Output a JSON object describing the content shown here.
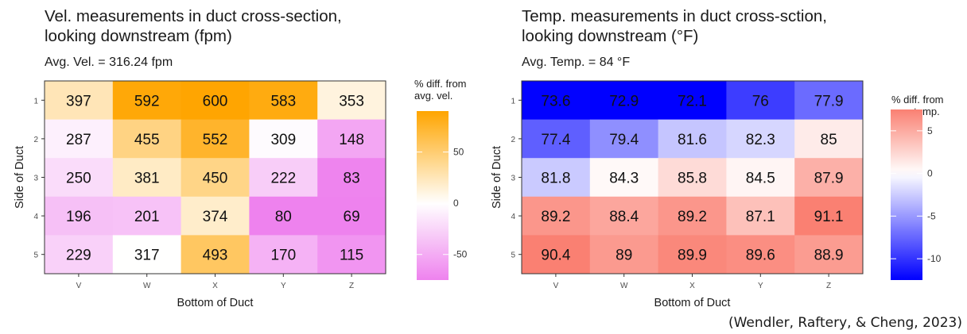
{
  "citation": "(Wendler, Raftery, & Cheng, 2023)",
  "chart_data": [
    {
      "type": "heatmap",
      "title": "Vel. measurements in duct cross-section,",
      "title_line2": "looking downstream (fpm)",
      "subtitle": "Avg. Vel. = 316.24 fpm",
      "xlabel": "Bottom of Duct",
      "ylabel": "Side of Duct",
      "x_categories": [
        "V",
        "W",
        "X",
        "Y",
        "Z"
      ],
      "y_categories": [
        "1",
        "2",
        "3",
        "4",
        "5"
      ],
      "values": [
        [
          397,
          592,
          600,
          583,
          353
        ],
        [
          287,
          455,
          552,
          309,
          148
        ],
        [
          250,
          381,
          450,
          222,
          83
        ],
        [
          196,
          201,
          374,
          80,
          69
        ],
        [
          229,
          317,
          493,
          170,
          115
        ]
      ],
      "average": 316.24,
      "legend_title": [
        "% diff. from",
        "avg. vel."
      ],
      "legend_ticks": [
        50,
        0,
        -50
      ],
      "legend_range": [
        -75,
        90
      ],
      "color_low": "#ee82ee",
      "color_mid": "#ffffff",
      "color_high": "#ffa500",
      "legend_position": "right",
      "grid": false
    },
    {
      "type": "heatmap",
      "title": "Temp. measurements in duct cross-sction,",
      "title_line2": "looking downstream (°F)",
      "subtitle": "Avg. Temp. = 84 °F",
      "xlabel": "Bottom of Duct",
      "ylabel": "Side of Duct",
      "x_categories": [
        "V",
        "W",
        "X",
        "Y",
        "Z"
      ],
      "y_categories": [
        "1",
        "2",
        "3",
        "4",
        "5"
      ],
      "values": [
        [
          73.6,
          72.9,
          72.1,
          76,
          77.9
        ],
        [
          77.4,
          79.4,
          81.6,
          82.3,
          85
        ],
        [
          81.8,
          84.3,
          85.8,
          84.5,
          87.9
        ],
        [
          89.2,
          88.4,
          89.2,
          87.1,
          91.1
        ],
        [
          90.4,
          89,
          89.9,
          89.6,
          88.9
        ]
      ],
      "average": 84,
      "legend_title": [
        "% diff. from",
        "avg. temp."
      ],
      "legend_ticks": [
        5,
        0,
        -5,
        -10
      ],
      "legend_range": [
        -12.5,
        7.5
      ],
      "color_low": "#0000ff",
      "color_mid": "#ffffff",
      "color_high": "#fa8072",
      "legend_position": "right",
      "grid": false
    }
  ]
}
